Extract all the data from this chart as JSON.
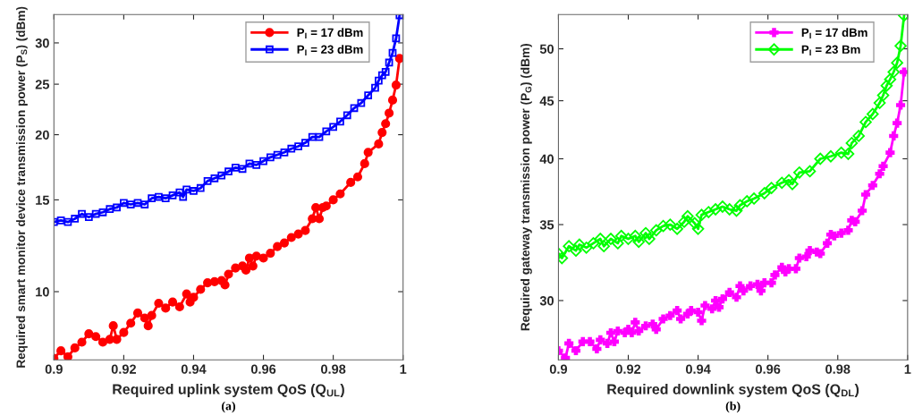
{
  "chart_data": [
    {
      "type": "line",
      "xlabel": "Required uplink system QoS (Q$_{UL}$)",
      "ylabel": "Required smart monitor device transmission power (P$_{S}$) (dBm)",
      "annotations": [
        "(a)"
      ],
      "log": "y",
      "grid": false,
      "legend": "top right",
      "xlim": [
        0.9,
        1
      ],
      "xticks": [
        0.9,
        0.92,
        0.94,
        0.96,
        0.98,
        1
      ],
      "ylim": [
        7.4,
        34
      ],
      "yticks": [
        10,
        15,
        20,
        25,
        30
      ],
      "series": [
        {
          "name": "P$_{I}$ = 17 dBm",
          "color": "#ff0000",
          "marker": "circle",
          "x": [
            0.9,
            0.902,
            0.904,
            0.906,
            0.908,
            0.91,
            0.912,
            0.914,
            0.916,
            0.917,
            0.918,
            0.92,
            0.922,
            0.924,
            0.926,
            0.927,
            0.928,
            0.93,
            0.932,
            0.934,
            0.936,
            0.938,
            0.939,
            0.94,
            0.942,
            0.944,
            0.946,
            0.948,
            0.949,
            0.95,
            0.952,
            0.954,
            0.955,
            0.956,
            0.957,
            0.958,
            0.96,
            0.962,
            0.964,
            0.966,
            0.968,
            0.97,
            0.972,
            0.974,
            0.975,
            0.976,
            0.977,
            0.978,
            0.98,
            0.982,
            0.985,
            0.987,
            0.989,
            0.99,
            0.993,
            0.994,
            0.995,
            0.996,
            0.997,
            0.998,
            0.999
          ],
          "values": [
            7.45,
            7.7,
            7.5,
            7.8,
            8.0,
            8.3,
            8.2,
            8.0,
            8.1,
            8.6,
            8.1,
            8.35,
            8.7,
            9.1,
            8.9,
            8.6,
            9.0,
            9.5,
            9.3,
            9.55,
            9.35,
            9.9,
            9.55,
            9.75,
            10.1,
            10.4,
            10.45,
            10.5,
            10.3,
            10.8,
            11.1,
            11.2,
            11.0,
            11.6,
            11.2,
            11.7,
            11.6,
            11.85,
            12.2,
            12.4,
            12.7,
            12.9,
            13.1,
            13.8,
            14.5,
            13.8,
            14.5,
            14.6,
            15.0,
            15.4,
            16.2,
            16.6,
            17.6,
            18.5,
            19.2,
            20.2,
            21.0,
            22.0,
            23.3,
            24.9,
            28.0
          ]
        },
        {
          "name": "P$_{I}$ = 23 dBm",
          "color": "#0000ff",
          "marker": "square",
          "x": [
            0.9,
            0.902,
            0.904,
            0.906,
            0.908,
            0.91,
            0.912,
            0.914,
            0.916,
            0.918,
            0.92,
            0.922,
            0.924,
            0.926,
            0.928,
            0.93,
            0.932,
            0.934,
            0.936,
            0.937,
            0.938,
            0.94,
            0.942,
            0.944,
            0.946,
            0.948,
            0.95,
            0.952,
            0.954,
            0.956,
            0.958,
            0.96,
            0.962,
            0.964,
            0.966,
            0.968,
            0.97,
            0.972,
            0.974,
            0.976,
            0.978,
            0.98,
            0.982,
            0.984,
            0.986,
            0.988,
            0.99,
            0.992,
            0.993,
            0.994,
            0.995,
            0.996,
            0.997,
            0.998,
            0.999
          ],
          "values": [
            13.6,
            13.7,
            13.6,
            13.8,
            14.1,
            13.9,
            14.1,
            14.2,
            14.4,
            14.5,
            14.8,
            14.7,
            14.8,
            14.7,
            15.1,
            15.2,
            15.1,
            15.3,
            15.5,
            15.2,
            15.7,
            15.6,
            15.8,
            16.3,
            16.5,
            16.7,
            17.0,
            17.3,
            17.2,
            17.6,
            17.5,
            17.8,
            18.1,
            18.3,
            18.5,
            18.8,
            19.0,
            19.3,
            19.8,
            19.8,
            20.3,
            20.7,
            21.2,
            21.8,
            22.5,
            23.0,
            23.8,
            24.6,
            25.4,
            26.0,
            26.4,
            27.5,
            28.7,
            30.6,
            33.9
          ]
        }
      ]
    },
    {
      "type": "line",
      "xlabel": "Required downlink system QoS (Q$_{DL}$)",
      "ylabel": "Required gateway transmission power (P$_{G}$) (dBm)",
      "annotations": [
        "(b)"
      ],
      "log": "y",
      "grid": false,
      "legend": "top right",
      "xlim": [
        0.9,
        1
      ],
      "xticks": [
        0.9,
        0.92,
        0.94,
        0.96,
        0.98,
        1
      ],
      "ylim": [
        26.6,
        53.6
      ],
      "yticks": [
        30,
        35,
        40,
        45,
        50
      ],
      "series": [
        {
          "name": "P$_{I}$ = 17 dBm",
          "color": "#ff00ff",
          "marker": "cross",
          "x": [
            0.9,
            0.902,
            0.903,
            0.905,
            0.907,
            0.909,
            0.911,
            0.912,
            0.914,
            0.915,
            0.916,
            0.917,
            0.919,
            0.92,
            0.921,
            0.922,
            0.923,
            0.925,
            0.927,
            0.928,
            0.93,
            0.932,
            0.934,
            0.935,
            0.937,
            0.938,
            0.94,
            0.941,
            0.942,
            0.944,
            0.945,
            0.946,
            0.947,
            0.949,
            0.951,
            0.952,
            0.953,
            0.955,
            0.957,
            0.958,
            0.959,
            0.961,
            0.962,
            0.964,
            0.965,
            0.966,
            0.968,
            0.969,
            0.971,
            0.972,
            0.974,
            0.975,
            0.977,
            0.978,
            0.979,
            0.981,
            0.983,
            0.984,
            0.985,
            0.987,
            0.988,
            0.99,
            0.992,
            0.993,
            0.995,
            0.996,
            0.997,
            0.998,
            0.999
          ],
          "values": [
            27.1,
            26.7,
            27.5,
            27.1,
            27.6,
            27.6,
            27.2,
            27.7,
            27.5,
            28.1,
            27.6,
            28.2,
            28.1,
            28.3,
            28.1,
            28.7,
            28.2,
            28.5,
            28.6,
            28.3,
            28.9,
            29.1,
            29.4,
            28.9,
            29.2,
            29.4,
            29.3,
            28.8,
            29.7,
            29.5,
            30.0,
            29.6,
            30.1,
            30.5,
            30.2,
            30.9,
            30.6,
            30.9,
            31.0,
            30.6,
            31.1,
            31.1,
            31.6,
            32.1,
            31.8,
            32.0,
            32.0,
            32.7,
            32.8,
            33.2,
            33.1,
            33.0,
            33.7,
            34.3,
            34.2,
            34.4,
            34.6,
            35.3,
            35.2,
            36.0,
            37.2,
            37.9,
            38.8,
            39.4,
            40.5,
            41.9,
            43.0,
            44.6,
            47.7
          ]
        },
        {
          "name": "P$_{I}$ = 23 Bm",
          "color": "#00ff00",
          "marker": "diamond",
          "x": [
            0.9,
            0.901,
            0.903,
            0.905,
            0.906,
            0.908,
            0.91,
            0.912,
            0.913,
            0.915,
            0.917,
            0.918,
            0.92,
            0.922,
            0.923,
            0.925,
            0.926,
            0.928,
            0.93,
            0.932,
            0.934,
            0.936,
            0.937,
            0.939,
            0.94,
            0.941,
            0.943,
            0.945,
            0.947,
            0.949,
            0.951,
            0.952,
            0.954,
            0.956,
            0.959,
            0.961,
            0.964,
            0.966,
            0.967,
            0.969,
            0.972,
            0.975,
            0.978,
            0.981,
            0.983,
            0.984,
            0.986,
            0.988,
            0.99,
            0.992,
            0.993,
            0.994,
            0.995,
            0.996,
            0.997,
            0.998,
            0.999
          ],
          "values": [
            33.0,
            32.7,
            33.5,
            33.2,
            33.6,
            33.4,
            33.7,
            34.0,
            33.5,
            34.0,
            33.7,
            34.2,
            34.0,
            34.2,
            33.8,
            34.4,
            34.0,
            34.6,
            34.9,
            35.0,
            34.7,
            35.2,
            35.6,
            35.1,
            34.7,
            35.7,
            35.9,
            36.1,
            36.3,
            36.1,
            36.0,
            36.4,
            36.7,
            36.9,
            37.3,
            37.7,
            38.1,
            38.3,
            38.0,
            38.9,
            39.0,
            40.0,
            40.2,
            40.5,
            40.4,
            41.3,
            41.9,
            43.1,
            43.8,
            44.8,
            45.5,
            46.4,
            47.0,
            47.7,
            48.6,
            50.3,
            53.5
          ]
        }
      ]
    }
  ]
}
